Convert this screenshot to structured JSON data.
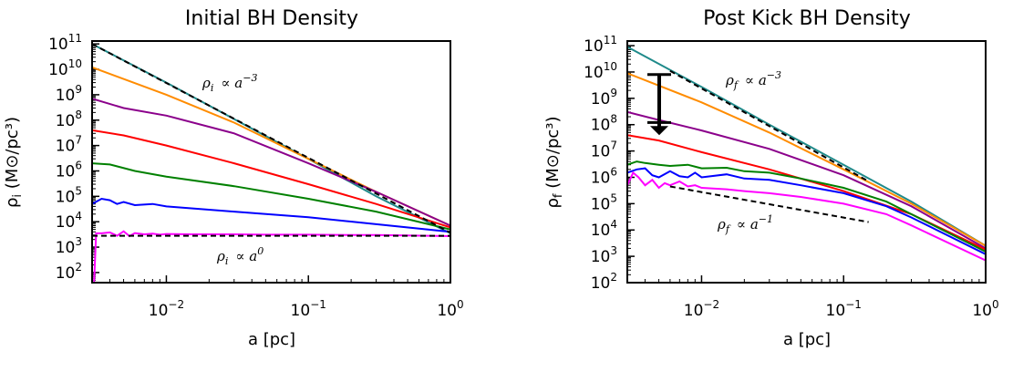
{
  "chart_data": [
    {
      "type": "line",
      "title": "Initial BH Density",
      "xlabel": "a [pc]",
      "ylabel_symbol": "ρ",
      "ylabel_sub": "i",
      "ylabel_units": "(M⊙/pc³)",
      "xscale": "log",
      "yscale": "log",
      "xlim": [
        0.003,
        1.0
      ],
      "ylim": [
        40,
        130000000000
      ],
      "xticks": [
        {
          "value": 0.01,
          "base": "10",
          "exp": "−2"
        },
        {
          "value": 0.1,
          "base": "10",
          "exp": "−1"
        },
        {
          "value": 1.0,
          "base": "10",
          "exp": "0"
        }
      ],
      "yticks": [
        {
          "value": 100,
          "base": "10",
          "exp": "2"
        },
        {
          "value": 1000,
          "base": "10",
          "exp": "3"
        },
        {
          "value": 10000,
          "base": "10",
          "exp": "4"
        },
        {
          "value": 100000,
          "base": "10",
          "exp": "5"
        },
        {
          "value": 1000000,
          "base": "10",
          "exp": "6"
        },
        {
          "value": 10000000,
          "base": "10",
          "exp": "7"
        },
        {
          "value": 100000000,
          "base": "10",
          "exp": "8"
        },
        {
          "value": 1000000000,
          "base": "10",
          "exp": "9"
        },
        {
          "value": 10000000000,
          "base": "10",
          "exp": "10"
        },
        {
          "value": 100000000000,
          "base": "10",
          "exp": "11"
        }
      ],
      "series": [
        {
          "name": "teal",
          "color": "#1f8a8a",
          "x": [
            0.003,
            0.01,
            0.03,
            0.1,
            0.3,
            1.0
          ],
          "y": [
            100000000000,
            3000000000,
            110000000,
            3000000,
            100000,
            3500
          ]
        },
        {
          "name": "orange",
          "color": "#ff8c00",
          "x": [
            0.003,
            0.01,
            0.03,
            0.1,
            0.3,
            1.0
          ],
          "y": [
            12000000000,
            1000000000,
            80000000,
            3000000,
            150000,
            7000
          ]
        },
        {
          "name": "purple",
          "color": "#8b008b",
          "x": [
            0.003,
            0.005,
            0.01,
            0.03,
            0.1,
            0.3,
            1.0
          ],
          "y": [
            700000000,
            300000000,
            150000000,
            30000000,
            2000000,
            150000,
            7000
          ]
        },
        {
          "name": "red",
          "color": "#ff0000",
          "x": [
            0.003,
            0.005,
            0.01,
            0.03,
            0.1,
            0.3,
            1.0
          ],
          "y": [
            40000000,
            25000000,
            10000000,
            2000000,
            300000,
            50000,
            6000
          ]
        },
        {
          "name": "green",
          "color": "#008000",
          "x": [
            0.003,
            0.004,
            0.006,
            0.01,
            0.03,
            0.1,
            0.3,
            1.0
          ],
          "y": [
            2000000,
            1800000,
            1000000,
            600000,
            250000,
            80000,
            25000,
            5000
          ]
        },
        {
          "name": "blue",
          "color": "#0000ff",
          "x": [
            0.003,
            0.0035,
            0.004,
            0.0045,
            0.005,
            0.006,
            0.008,
            0.01,
            0.03,
            0.1,
            0.3,
            1.0
          ],
          "y": [
            50000,
            80000,
            70000,
            50000,
            60000,
            45000,
            50000,
            40000,
            25000,
            15000,
            8000,
            4000
          ]
        },
        {
          "name": "magenta",
          "color": "#ff00ff",
          "x": [
            0.0031,
            0.0032,
            0.0035,
            0.004,
            0.0045,
            0.005,
            0.0055,
            0.006,
            0.007,
            0.008,
            0.009,
            0.01,
            0.015,
            0.02,
            0.03,
            0.05,
            0.1,
            0.2,
            0.3,
            0.5,
            1.0
          ],
          "y": [
            40,
            3500,
            3500,
            3800,
            2800,
            4200,
            2700,
            3600,
            3200,
            3400,
            3100,
            3300,
            3200,
            3200,
            3200,
            3100,
            3100,
            3000,
            3000,
            2900,
            2700
          ]
        }
      ],
      "guides": [
        {
          "label": "ρᵢ ∝ a⁻³",
          "sym": "ρ",
          "sub": "i",
          "prop": "∝ a",
          "exp": "−3",
          "x": [
            0.003,
            1.0
          ],
          "y": [
            100000000000,
            3700
          ]
        },
        {
          "label": "ρᵢ ∝ a⁰",
          "sym": "ρ",
          "sub": "i",
          "prop": "∝ a",
          "exp": "0",
          "x": [
            0.003,
            1.0
          ],
          "y": [
            2800,
            2800
          ]
        }
      ]
    },
    {
      "type": "line",
      "title": "Post Kick BH Density",
      "xlabel": "a [pc]",
      "ylabel_symbol": "ρ",
      "ylabel_sub": "f",
      "ylabel_units": "(M⊙/pc³)",
      "xscale": "log",
      "yscale": "log",
      "xlim": [
        0.003,
        1.0
      ],
      "ylim": [
        100,
        150000000000
      ],
      "xticks": [
        {
          "value": 0.01,
          "base": "10",
          "exp": "−2"
        },
        {
          "value": 0.1,
          "base": "10",
          "exp": "−1"
        },
        {
          "value": 1.0,
          "base": "10",
          "exp": "0"
        }
      ],
      "yticks": [
        {
          "value": 100,
          "base": "10",
          "exp": "2"
        },
        {
          "value": 1000,
          "base": "10",
          "exp": "3"
        },
        {
          "value": 10000,
          "base": "10",
          "exp": "4"
        },
        {
          "value": 100000,
          "base": "10",
          "exp": "5"
        },
        {
          "value": 1000000,
          "base": "10",
          "exp": "6"
        },
        {
          "value": 10000000,
          "base": "10",
          "exp": "7"
        },
        {
          "value": 100000000,
          "base": "10",
          "exp": "8"
        },
        {
          "value": 1000000000,
          "base": "10",
          "exp": "9"
        },
        {
          "value": 10000000000,
          "base": "10",
          "exp": "10"
        },
        {
          "value": 100000000000,
          "base": "10",
          "exp": "11"
        }
      ],
      "series": [
        {
          "name": "teal",
          "color": "#1f8a8a",
          "x": [
            0.003,
            0.01,
            0.03,
            0.1,
            0.3,
            1.0
          ],
          "y": [
            90000000000,
            2700000000,
            100000000,
            3000000,
            120000,
            2500
          ]
        },
        {
          "name": "orange",
          "color": "#ff8c00",
          "x": [
            0.003,
            0.01,
            0.03,
            0.1,
            0.3,
            1.0
          ],
          "y": [
            9000000000,
            700000000,
            50000000,
            2000000,
            100000,
            2500
          ]
        },
        {
          "name": "purple",
          "color": "#8b008b",
          "x": [
            0.003,
            0.005,
            0.01,
            0.03,
            0.1,
            0.3,
            1.0
          ],
          "y": [
            300000000,
            150000000,
            60000000,
            12000000,
            1200000,
            80000,
            2000
          ]
        },
        {
          "name": "red",
          "color": "#ff0000",
          "x": [
            0.003,
            0.005,
            0.01,
            0.03,
            0.1,
            0.3,
            1.0
          ],
          "y": [
            40000000,
            25000000,
            9000000,
            2000000,
            300000,
            40000,
            1800
          ]
        },
        {
          "name": "green",
          "color": "#008000",
          "x": [
            0.003,
            0.0035,
            0.004,
            0.005,
            0.006,
            0.008,
            0.01,
            0.015,
            0.02,
            0.03,
            0.05,
            0.1,
            0.2,
            0.3,
            1.0
          ],
          "y": [
            3000000,
            4000000,
            3500000,
            3000000,
            2700000,
            3000000,
            2200000,
            2300000,
            1700000,
            1500000,
            900000,
            400000,
            120000,
            40000,
            1500
          ]
        },
        {
          "name": "blue",
          "color": "#0000ff",
          "x": [
            0.003,
            0.0035,
            0.004,
            0.0045,
            0.005,
            0.006,
            0.007,
            0.008,
            0.009,
            0.01,
            0.015,
            0.02,
            0.03,
            0.05,
            0.1,
            0.2,
            0.3,
            1.0
          ],
          "y": [
            1500000,
            2000000,
            2200000,
            1200000,
            1000000,
            1700000,
            1100000,
            1000000,
            1500000,
            1000000,
            1300000,
            900000,
            800000,
            500000,
            250000,
            80000,
            30000,
            1200
          ]
        },
        {
          "name": "magenta",
          "color": "#ff00ff",
          "x": [
            0.003,
            0.0033,
            0.0036,
            0.004,
            0.0045,
            0.005,
            0.0055,
            0.006,
            0.007,
            0.008,
            0.009,
            0.01,
            0.015,
            0.02,
            0.03,
            0.05,
            0.1,
            0.2,
            0.3,
            1.0
          ],
          "y": [
            500000,
            1500000,
            1000000,
            500000,
            800000,
            400000,
            600000,
            500000,
            700000,
            450000,
            500000,
            400000,
            350000,
            300000,
            250000,
            180000,
            100000,
            40000,
            15000,
            700
          ]
        }
      ],
      "guides": [
        {
          "label": "ρf ∝ a⁻³",
          "sym": "ρ",
          "sub": "f",
          "prop": "∝ a",
          "exp": "−3",
          "x": [
            0.006,
            0.15
          ],
          "y": [
            11000000000,
            700000
          ]
        },
        {
          "label": "ρf ∝ a⁻¹",
          "sym": "ρ",
          "sub": "f",
          "prop": "∝ a",
          "exp": "−1",
          "x": [
            0.006,
            0.15
          ],
          "y": [
            450000,
            20000
          ]
        }
      ],
      "arrow": {
        "x": 0.0045,
        "y_top": 8000000000,
        "y_bar2": 120000000,
        "y_tip": 40000000
      }
    }
  ]
}
